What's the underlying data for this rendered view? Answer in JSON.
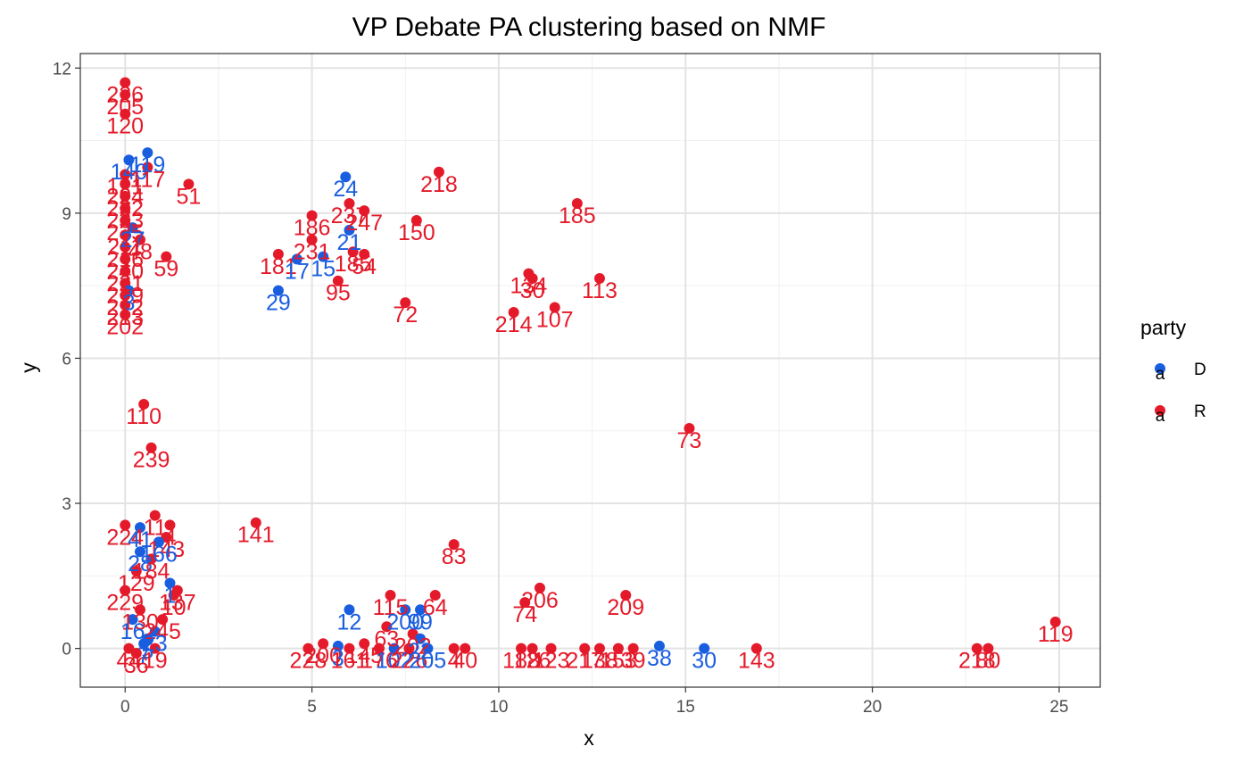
{
  "chart_data": {
    "type": "scatter",
    "title": "VP Debate PA clustering based on NMF",
    "xlabel": "x",
    "ylabel": "y",
    "xlim": [
      -1.2,
      26.1
    ],
    "ylim": [
      -0.8,
      12.3
    ],
    "x_ticks": [
      0,
      5,
      10,
      15,
      20,
      25
    ],
    "y_ticks": [
      0,
      3,
      6,
      9,
      12
    ],
    "x_tick_labels": [
      "0",
      "5",
      "10",
      "15",
      "20",
      "25"
    ],
    "y_tick_labels": [
      "0",
      "3",
      "6",
      "9",
      "12"
    ],
    "grid": true,
    "legend": {
      "title": "party",
      "position": "right",
      "entries": [
        {
          "key": "D",
          "label": "D",
          "color": "#1a5ee0",
          "glyph": "a"
        },
        {
          "key": "R",
          "label": "R",
          "color": "#e41a2a",
          "glyph": "a"
        }
      ]
    },
    "points": [
      {
        "x": 0.0,
        "y": 11.7,
        "label": "226",
        "party": "R"
      },
      {
        "x": 0.0,
        "y": 11.45,
        "label": "205",
        "party": "R"
      },
      {
        "x": 0.0,
        "y": 11.05,
        "label": "120",
        "party": "R"
      },
      {
        "x": 0.6,
        "y": 10.25,
        "label": "119",
        "party": "D"
      },
      {
        "x": 0.1,
        "y": 10.1,
        "label": "140",
        "party": "D"
      },
      {
        "x": 0.6,
        "y": 9.95,
        "label": "117",
        "party": "R"
      },
      {
        "x": 0.0,
        "y": 9.8,
        "label": "121",
        "party": "R"
      },
      {
        "x": 0.0,
        "y": 9.6,
        "label": "224",
        "party": "R"
      },
      {
        "x": 1.7,
        "y": 9.6,
        "label": "51",
        "party": "R"
      },
      {
        "x": 0.0,
        "y": 9.35,
        "label": "232",
        "party": "R"
      },
      {
        "x": 0.0,
        "y": 9.1,
        "label": "233",
        "party": "R"
      },
      {
        "x": 0.0,
        "y": 8.85,
        "label": "235",
        "party": "R"
      },
      {
        "x": 0.2,
        "y": 8.7,
        "label": "27",
        "party": "D"
      },
      {
        "x": 0.0,
        "y": 8.55,
        "label": "211",
        "party": "R"
      },
      {
        "x": 0.4,
        "y": 8.45,
        "label": "48",
        "party": "R"
      },
      {
        "x": 0.0,
        "y": 8.3,
        "label": "216",
        "party": "R"
      },
      {
        "x": 1.1,
        "y": 8.1,
        "label": "59",
        "party": "R"
      },
      {
        "x": 0.0,
        "y": 8.05,
        "label": "240",
        "party": "R"
      },
      {
        "x": 0.0,
        "y": 7.8,
        "label": "221",
        "party": "R"
      },
      {
        "x": 0.0,
        "y": 7.55,
        "label": "219",
        "party": "R"
      },
      {
        "x": 0.1,
        "y": 7.4,
        "label": "3",
        "party": "D"
      },
      {
        "x": 0.0,
        "y": 7.3,
        "label": "212",
        "party": "R"
      },
      {
        "x": 0.0,
        "y": 7.1,
        "label": "213",
        "party": "R"
      },
      {
        "x": 0.0,
        "y": 6.9,
        "label": "202",
        "party": "R"
      },
      {
        "x": 0.5,
        "y": 5.05,
        "label": "110",
        "party": "R"
      },
      {
        "x": 0.7,
        "y": 4.15,
        "label": "239",
        "party": "R"
      },
      {
        "x": 5.9,
        "y": 9.75,
        "label": "24",
        "party": "D"
      },
      {
        "x": 6.0,
        "y": 9.2,
        "label": "237",
        "party": "R"
      },
      {
        "x": 6.4,
        "y": 9.05,
        "label": "247",
        "party": "R"
      },
      {
        "x": 5.0,
        "y": 8.95,
        "label": "186",
        "party": "R"
      },
      {
        "x": 6.0,
        "y": 8.65,
        "label": "21",
        "party": "D"
      },
      {
        "x": 5.0,
        "y": 8.45,
        "label": "231",
        "party": "R"
      },
      {
        "x": 4.1,
        "y": 8.15,
        "label": "181",
        "party": "R"
      },
      {
        "x": 4.6,
        "y": 8.05,
        "label": "17",
        "party": "D"
      },
      {
        "x": 5.3,
        "y": 8.1,
        "label": "15",
        "party": "D"
      },
      {
        "x": 6.1,
        "y": 8.2,
        "label": "185",
        "party": "R"
      },
      {
        "x": 6.4,
        "y": 8.15,
        "label": "54",
        "party": "R"
      },
      {
        "x": 5.7,
        "y": 7.6,
        "label": "95",
        "party": "R"
      },
      {
        "x": 4.1,
        "y": 7.4,
        "label": "29",
        "party": "D"
      },
      {
        "x": 8.4,
        "y": 9.85,
        "label": "218",
        "party": "R"
      },
      {
        "x": 7.8,
        "y": 8.85,
        "label": "150",
        "party": "R"
      },
      {
        "x": 7.5,
        "y": 7.15,
        "label": "72",
        "party": "R"
      },
      {
        "x": 12.1,
        "y": 9.2,
        "label": "185",
        "party": "R"
      },
      {
        "x": 10.8,
        "y": 7.75,
        "label": "134",
        "party": "R"
      },
      {
        "x": 10.9,
        "y": 7.65,
        "label": "30",
        "party": "R"
      },
      {
        "x": 12.7,
        "y": 7.65,
        "label": "113",
        "party": "R"
      },
      {
        "x": 10.4,
        "y": 6.95,
        "label": "214",
        "party": "R"
      },
      {
        "x": 11.5,
        "y": 7.05,
        "label": "107",
        "party": "R"
      },
      {
        "x": 15.1,
        "y": 4.55,
        "label": "73",
        "party": "R"
      },
      {
        "x": 3.5,
        "y": 2.6,
        "label": "141",
        "party": "R"
      },
      {
        "x": 8.8,
        "y": 2.15,
        "label": "83",
        "party": "R"
      },
      {
        "x": 0.0,
        "y": 2.55,
        "label": "224",
        "party": "R"
      },
      {
        "x": 0.8,
        "y": 2.75,
        "label": "11",
        "party": "R"
      },
      {
        "x": 1.2,
        "y": 2.55,
        "label": "4",
        "party": "R"
      },
      {
        "x": 0.4,
        "y": 2.5,
        "label": "41",
        "party": "D"
      },
      {
        "x": 1.1,
        "y": 2.3,
        "label": "143",
        "party": "R"
      },
      {
        "x": 0.9,
        "y": 2.2,
        "label": "166",
        "party": "D"
      },
      {
        "x": 0.4,
        "y": 2.0,
        "label": "28",
        "party": "D"
      },
      {
        "x": 0.7,
        "y": 1.85,
        "label": "184",
        "party": "R"
      },
      {
        "x": 0.3,
        "y": 1.6,
        "label": "129",
        "party": "R"
      },
      {
        "x": 0.0,
        "y": 1.2,
        "label": "229",
        "party": "R"
      },
      {
        "x": 1.2,
        "y": 1.35,
        "label": "1",
        "party": "D"
      },
      {
        "x": 1.4,
        "y": 1.2,
        "label": "137",
        "party": "R"
      },
      {
        "x": 1.3,
        "y": 1.1,
        "label": "10",
        "party": "R"
      },
      {
        "x": 0.4,
        "y": 0.8,
        "label": "130",
        "party": "R"
      },
      {
        "x": 0.2,
        "y": 0.6,
        "label": "16",
        "party": "D"
      },
      {
        "x": 1.0,
        "y": 0.6,
        "label": "245",
        "party": "R"
      },
      {
        "x": 0.8,
        "y": 0.35,
        "label": "23",
        "party": "D"
      },
      {
        "x": 0.6,
        "y": 0.2,
        "label": "5",
        "party": "D"
      },
      {
        "x": 0.8,
        "y": 0.0,
        "label": "19",
        "party": "R"
      },
      {
        "x": 0.1,
        "y": 0.0,
        "label": "44",
        "party": "R"
      },
      {
        "x": 0.3,
        "y": -0.1,
        "label": "36",
        "party": "R"
      },
      {
        "x": 0.5,
        "y": 0.1,
        "label": "7",
        "party": "D"
      },
      {
        "x": 6.0,
        "y": 0.8,
        "label": "12",
        "party": "D"
      },
      {
        "x": 7.1,
        "y": 1.1,
        "label": "115",
        "party": "R"
      },
      {
        "x": 8.3,
        "y": 1.1,
        "label": "64",
        "party": "R"
      },
      {
        "x": 7.5,
        "y": 0.8,
        "label": "200",
        "party": "D"
      },
      {
        "x": 7.9,
        "y": 0.8,
        "label": "99",
        "party": "D"
      },
      {
        "x": 7.0,
        "y": 0.45,
        "label": "63",
        "party": "R"
      },
      {
        "x": 7.7,
        "y": 0.3,
        "label": "202",
        "party": "R"
      },
      {
        "x": 7.9,
        "y": 0.2,
        "label": "22",
        "party": "D"
      },
      {
        "x": 4.9,
        "y": 0.0,
        "label": "228",
        "party": "R"
      },
      {
        "x": 5.3,
        "y": 0.1,
        "label": "200",
        "party": "R"
      },
      {
        "x": 5.7,
        "y": 0.05,
        "label": "3",
        "party": "D"
      },
      {
        "x": 6.0,
        "y": 0.0,
        "label": "161",
        "party": "R"
      },
      {
        "x": 6.4,
        "y": 0.1,
        "label": "145",
        "party": "R"
      },
      {
        "x": 6.8,
        "y": 0.0,
        "label": "176",
        "party": "R"
      },
      {
        "x": 7.2,
        "y": 0.0,
        "label": "102",
        "party": "D"
      },
      {
        "x": 7.6,
        "y": 0.0,
        "label": "226",
        "party": "R"
      },
      {
        "x": 8.1,
        "y": 0.0,
        "label": "205",
        "party": "D"
      },
      {
        "x": 8.8,
        "y": 0.0,
        "label": "4",
        "party": "R"
      },
      {
        "x": 9.1,
        "y": 0.0,
        "label": "40",
        "party": "R"
      },
      {
        "x": 10.7,
        "y": 0.95,
        "label": "74",
        "party": "R"
      },
      {
        "x": 11.1,
        "y": 1.25,
        "label": "206",
        "party": "R"
      },
      {
        "x": 13.4,
        "y": 1.1,
        "label": "209",
        "party": "R"
      },
      {
        "x": 10.6,
        "y": 0.0,
        "label": "188",
        "party": "R"
      },
      {
        "x": 10.9,
        "y": 0.0,
        "label": "126",
        "party": "R"
      },
      {
        "x": 11.4,
        "y": 0.0,
        "label": "123",
        "party": "R"
      },
      {
        "x": 12.3,
        "y": 0.0,
        "label": "217",
        "party": "R"
      },
      {
        "x": 12.7,
        "y": 0.0,
        "label": "138",
        "party": "R"
      },
      {
        "x": 13.2,
        "y": 0.0,
        "label": "153",
        "party": "R"
      },
      {
        "x": 13.6,
        "y": 0.0,
        "label": "39",
        "party": "R"
      },
      {
        "x": 14.3,
        "y": 0.05,
        "label": "38",
        "party": "D"
      },
      {
        "x": 15.5,
        "y": 0.0,
        "label": "30",
        "party": "D"
      },
      {
        "x": 16.9,
        "y": 0.0,
        "label": "143",
        "party": "R"
      },
      {
        "x": 22.8,
        "y": 0.0,
        "label": "218",
        "party": "R"
      },
      {
        "x": 23.1,
        "y": 0.0,
        "label": "80",
        "party": "R"
      },
      {
        "x": 24.9,
        "y": 0.55,
        "label": "119",
        "party": "R"
      }
    ]
  }
}
